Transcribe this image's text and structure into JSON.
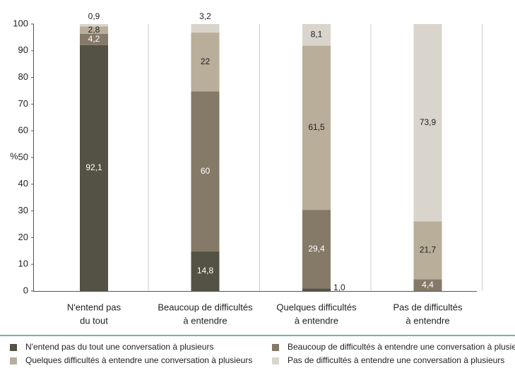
{
  "chart_data": {
    "type": "bar",
    "stacked": true,
    "ylabel": "%",
    "categories": [
      [
        "N'entend pas",
        "du tout"
      ],
      [
        "Beaucoup de difficultés",
        "à entendre"
      ],
      [
        "Quelques difficultés",
        "à entendre"
      ],
      [
        "Pas de difficultés",
        "à entendre"
      ]
    ],
    "series": [
      {
        "name": "N'entend pas du tout une conversation à plusieurs",
        "color": "#545244",
        "values": [
          92.1,
          14.8,
          1.0,
          null
        ],
        "value_labels": [
          "92,1",
          "14,8",
          "1,0",
          null
        ]
      },
      {
        "name": "Beaucoup de difficultés à entendre une conversation à plusieurs",
        "color": "#857a68",
        "values": [
          4.2,
          60,
          29.4,
          4.4
        ],
        "value_labels": [
          "4,2",
          "60",
          "29,4",
          "4,4"
        ]
      },
      {
        "name": "Quelques difficultés à entendre une conversation à plusieurs",
        "color": "#b8ae9a",
        "values": [
          2.8,
          22,
          61.5,
          21.7
        ],
        "value_labels": [
          "2,8",
          "22",
          "61,5",
          "21,7"
        ]
      },
      {
        "name": "Pas de difficultés à entendre une conversation à plusieurs",
        "color": "#dad5cc",
        "values": [
          0.9,
          3.2,
          8.1,
          73.9
        ],
        "value_labels": [
          "0,9",
          "3,2",
          "8,1",
          "73,9"
        ]
      }
    ],
    "ylim": [
      0,
      100
    ],
    "yticks": [
      0,
      10,
      20,
      30,
      40,
      50,
      60,
      70,
      80,
      90,
      100
    ],
    "grid": false
  }
}
